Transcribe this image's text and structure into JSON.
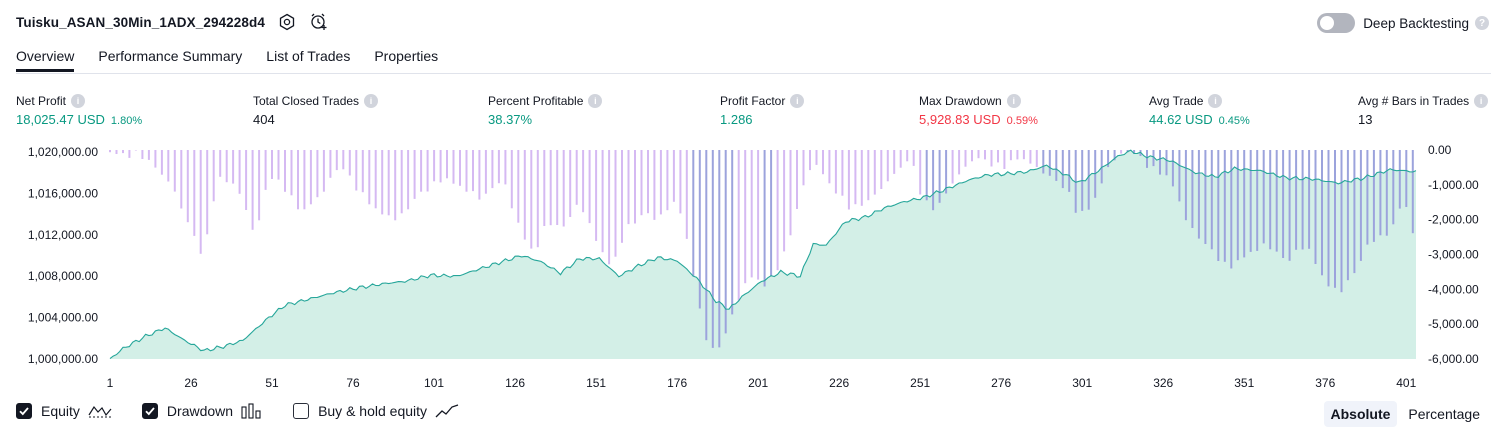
{
  "header": {
    "strategy_name": "Tuisku_ASAN_30Min_1ADX_294228d4",
    "deep_backtesting_label": "Deep Backtesting",
    "deep_backtesting_enabled": false
  },
  "tabs": [
    {
      "label": "Overview",
      "active": true
    },
    {
      "label": "Performance Summary",
      "active": false
    },
    {
      "label": "List of Trades",
      "active": false
    },
    {
      "label": "Properties",
      "active": false
    }
  ],
  "metrics": [
    {
      "label": "Net Profit",
      "value": "18,025.47 USD",
      "pct": "1.80%",
      "tone": "pos"
    },
    {
      "label": "Total Closed Trades",
      "value": "404",
      "pct": "",
      "tone": "plain"
    },
    {
      "label": "Percent Profitable",
      "value": "38.37%",
      "pct": "",
      "tone": "pos"
    },
    {
      "label": "Profit Factor",
      "value": "1.286",
      "pct": "",
      "tone": "pos"
    },
    {
      "label": "Max Drawdown",
      "value": "5,928.83 USD",
      "pct": "0.59%",
      "tone": "neg"
    },
    {
      "label": "Avg Trade",
      "value": "44.62 USD",
      "pct": "0.45%",
      "tone": "pos"
    },
    {
      "label": "Avg # Bars in Trades",
      "value": "13",
      "pct": "",
      "tone": "plain"
    }
  ],
  "chart_data": {
    "type": "area",
    "x_ticks": [
      "1",
      "26",
      "51",
      "76",
      "101",
      "126",
      "151",
      "176",
      "201",
      "226",
      "251",
      "276",
      "301",
      "326",
      "351",
      "376",
      "401"
    ],
    "left_axis_ticks": [
      "1,020,000.00",
      "1,016,000.00",
      "1,012,000.00",
      "1,008,000.00",
      "1,004,000.00",
      "1,000,000.00"
    ],
    "right_axis_ticks": [
      "0.00",
      "-1,000.00",
      "-2,000.00",
      "-3,000.00",
      "-4,000.00",
      "-5,000.00",
      "-6,000.00"
    ],
    "equity_ylim": [
      1000000,
      1020200
    ],
    "drawdown_ylim": [
      -6000,
      0
    ],
    "equity_keypoints": [
      [
        1,
        1000000
      ],
      [
        5,
        1001000
      ],
      [
        12,
        1002200
      ],
      [
        18,
        1003000
      ],
      [
        24,
        1001800
      ],
      [
        30,
        1000800
      ],
      [
        36,
        1001200
      ],
      [
        42,
        1001800
      ],
      [
        50,
        1004000
      ],
      [
        55,
        1005200
      ],
      [
        60,
        1005600
      ],
      [
        70,
        1006400
      ],
      [
        78,
        1006900
      ],
      [
        86,
        1007300
      ],
      [
        92,
        1007500
      ],
      [
        100,
        1008100
      ],
      [
        108,
        1008000
      ],
      [
        116,
        1008800
      ],
      [
        122,
        1009400
      ],
      [
        128,
        1010000
      ],
      [
        134,
        1009400
      ],
      [
        140,
        1008300
      ],
      [
        146,
        1009700
      ],
      [
        152,
        1009700
      ],
      [
        158,
        1008000
      ],
      [
        164,
        1009000
      ],
      [
        170,
        1009800
      ],
      [
        176,
        1009500
      ],
      [
        182,
        1007800
      ],
      [
        188,
        1005600
      ],
      [
        192,
        1004800
      ],
      [
        196,
        1006000
      ],
      [
        202,
        1007500
      ],
      [
        208,
        1008400
      ],
      [
        214,
        1008000
      ],
      [
        218,
        1011100
      ],
      [
        222,
        1011000
      ],
      [
        228,
        1013300
      ],
      [
        234,
        1013700
      ],
      [
        240,
        1014600
      ],
      [
        246,
        1015200
      ],
      [
        252,
        1015600
      ],
      [
        258,
        1016300
      ],
      [
        266,
        1017300
      ],
      [
        272,
        1017800
      ],
      [
        278,
        1017900
      ],
      [
        284,
        1018100
      ],
      [
        290,
        1018700
      ],
      [
        296,
        1017800
      ],
      [
        300,
        1017000
      ],
      [
        306,
        1018200
      ],
      [
        312,
        1019600
      ],
      [
        316,
        1020100
      ],
      [
        322,
        1019500
      ],
      [
        328,
        1019200
      ],
      [
        336,
        1018000
      ],
      [
        342,
        1017600
      ],
      [
        348,
        1018400
      ],
      [
        356,
        1018200
      ],
      [
        364,
        1017500
      ],
      [
        372,
        1017400
      ],
      [
        380,
        1017000
      ],
      [
        388,
        1017500
      ],
      [
        396,
        1018300
      ],
      [
        404,
        1018100
      ]
    ],
    "drawdown_keypoints": [
      [
        1,
        -50
      ],
      [
        5,
        -150
      ],
      [
        10,
        -100
      ],
      [
        14,
        -400
      ],
      [
        20,
        -1000
      ],
      [
        26,
        -2300
      ],
      [
        30,
        -3100
      ],
      [
        34,
        -800
      ],
      [
        40,
        -1000
      ],
      [
        46,
        -2500
      ],
      [
        50,
        -700
      ],
      [
        55,
        -1100
      ],
      [
        60,
        -1800
      ],
      [
        66,
        -1300
      ],
      [
        72,
        -400
      ],
      [
        78,
        -1200
      ],
      [
        84,
        -1800
      ],
      [
        90,
        -2000
      ],
      [
        96,
        -1300
      ],
      [
        104,
        -800
      ],
      [
        110,
        -1100
      ],
      [
        116,
        -1400
      ],
      [
        122,
        -800
      ],
      [
        128,
        -2400
      ],
      [
        132,
        -3000
      ],
      [
        136,
        -2000
      ],
      [
        140,
        -2300
      ],
      [
        146,
        -1500
      ],
      [
        152,
        -2800
      ],
      [
        156,
        -3400
      ],
      [
        160,
        -2300
      ],
      [
        166,
        -1800
      ],
      [
        170,
        -2000
      ],
      [
        176,
        -1400
      ],
      [
        180,
        -3000
      ],
      [
        184,
        -5200
      ],
      [
        188,
        -5900
      ],
      [
        192,
        -5000
      ],
      [
        198,
        -3600
      ],
      [
        204,
        -3900
      ],
      [
        210,
        -2800
      ],
      [
        214,
        -1300
      ],
      [
        218,
        -300
      ],
      [
        224,
        -1100
      ],
      [
        230,
        -1700
      ],
      [
        236,
        -1400
      ],
      [
        242,
        -800
      ],
      [
        248,
        -200
      ],
      [
        252,
        -1500
      ],
      [
        256,
        -1700
      ],
      [
        262,
        -800
      ],
      [
        268,
        -200
      ],
      [
        276,
        -500
      ],
      [
        282,
        -200
      ],
      [
        290,
        -700
      ],
      [
        296,
        -1100
      ],
      [
        300,
        -1900
      ],
      [
        304,
        -1600
      ],
      [
        310,
        -300
      ],
      [
        316,
        0
      ],
      [
        322,
        -500
      ],
      [
        328,
        -800
      ],
      [
        334,
        -2200
      ],
      [
        340,
        -2800
      ],
      [
        346,
        -3400
      ],
      [
        352,
        -3000
      ],
      [
        358,
        -2700
      ],
      [
        364,
        -3200
      ],
      [
        370,
        -2700
      ],
      [
        376,
        -3800
      ],
      [
        380,
        -4100
      ],
      [
        384,
        -3700
      ],
      [
        390,
        -2600
      ],
      [
        396,
        -2400
      ],
      [
        400,
        -1400
      ],
      [
        404,
        -2600
      ]
    ],
    "colors": {
      "equity_line": "#26a69a",
      "equity_fill": "#d3efe7",
      "drawdown_bar": "#d5b9f2",
      "drawdown_bar_over_equity": "#9ca3dc"
    }
  },
  "legend": {
    "equity_label": "Equity",
    "drawdown_label": "Drawdown",
    "buyhold_label": "Buy & hold equity",
    "equity_checked": true,
    "drawdown_checked": true,
    "buyhold_checked": false
  },
  "view_toggle": {
    "absolute_label": "Absolute",
    "percentage_label": "Percentage",
    "active": "Absolute"
  }
}
